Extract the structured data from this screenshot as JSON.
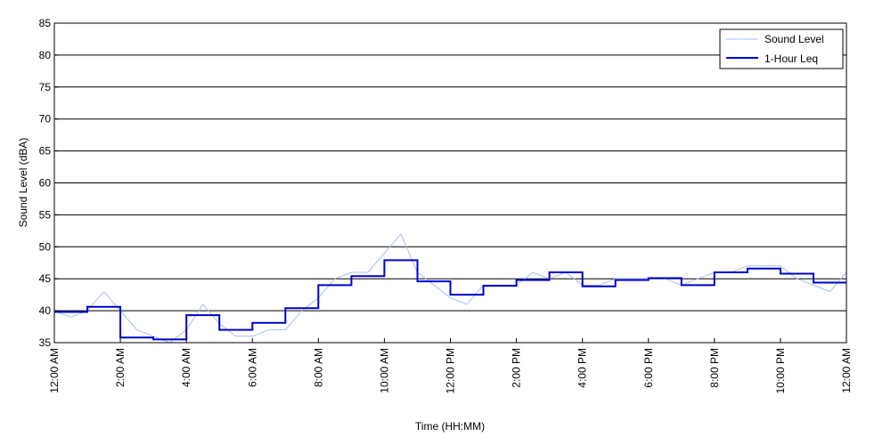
{
  "chart_data": {
    "type": "line",
    "title": "",
    "xlabel": "Time (HH:MM)",
    "ylabel": "Sound Level (dBA)",
    "x_unit": "hours after 12:00 AM",
    "xlim": [
      0,
      24
    ],
    "ylim": [
      35,
      85
    ],
    "y_ticks": [
      35,
      40,
      45,
      50,
      55,
      60,
      65,
      70,
      75,
      80,
      85
    ],
    "x_ticks": [
      {
        "value": 0,
        "label": "12:00 AM"
      },
      {
        "value": 2,
        "label": "2:00 AM"
      },
      {
        "value": 4,
        "label": "4:00 AM"
      },
      {
        "value": 6,
        "label": "6:00 AM"
      },
      {
        "value": 8,
        "label": "8:00 AM"
      },
      {
        "value": 10,
        "label": "10:00 AM"
      },
      {
        "value": 12,
        "label": "12:00 PM"
      },
      {
        "value": 14,
        "label": "2:00 PM"
      },
      {
        "value": 16,
        "label": "4:00 PM"
      },
      {
        "value": 18,
        "label": "6:00 PM"
      },
      {
        "value": 20,
        "label": "8:00 PM"
      },
      {
        "value": 22,
        "label": "10:00 PM"
      },
      {
        "value": 24,
        "label": "12:00 AM"
      }
    ],
    "grid": {
      "horizontal": true,
      "vertical": false
    },
    "legend_position": "top-right",
    "series": [
      {
        "name": "Sound Level",
        "style": "thin line",
        "color": "#a8bff0",
        "x": [
          0,
          0.5,
          1,
          1.5,
          2,
          2.5,
          3,
          3.5,
          4,
          4.5,
          5,
          5.5,
          6,
          6.5,
          7,
          7.5,
          8,
          8.5,
          9,
          9.5,
          10,
          10.5,
          11,
          11.5,
          12,
          12.5,
          13,
          13.5,
          14,
          14.5,
          15,
          15.5,
          16,
          16.5,
          17,
          17.5,
          18,
          18.5,
          19,
          19.5,
          20,
          20.5,
          21,
          21.5,
          22,
          22.5,
          23,
          23.5,
          24
        ],
        "values": [
          40,
          39,
          40,
          43,
          40,
          37,
          36,
          35,
          37,
          41,
          38,
          36,
          36,
          37,
          37,
          40,
          42,
          45,
          46,
          46,
          49,
          52,
          46,
          44,
          42,
          41,
          44,
          44,
          44,
          46,
          45,
          46,
          44,
          44,
          45,
          45,
          45,
          45,
          44,
          45,
          46,
          46,
          47,
          47,
          47,
          45,
          44,
          43,
          46
        ]
      },
      {
        "name": "1-Hour Leq",
        "style": "step",
        "color": "#0000cc",
        "x": [
          0,
          1,
          2,
          3,
          4,
          5,
          6,
          7,
          8,
          9,
          10,
          11,
          12,
          13,
          14,
          15,
          16,
          17,
          18,
          19,
          20,
          21,
          22,
          23
        ],
        "values": [
          39.8,
          40.6,
          35.8,
          35.5,
          39.3,
          37.0,
          38.1,
          40.4,
          44.0,
          45.4,
          47.9,
          44.6,
          42.5,
          43.9,
          44.8,
          46.0,
          43.8,
          44.8,
          45.1,
          44.0,
          46.0,
          46.6,
          45.8,
          44.4
        ]
      }
    ]
  }
}
